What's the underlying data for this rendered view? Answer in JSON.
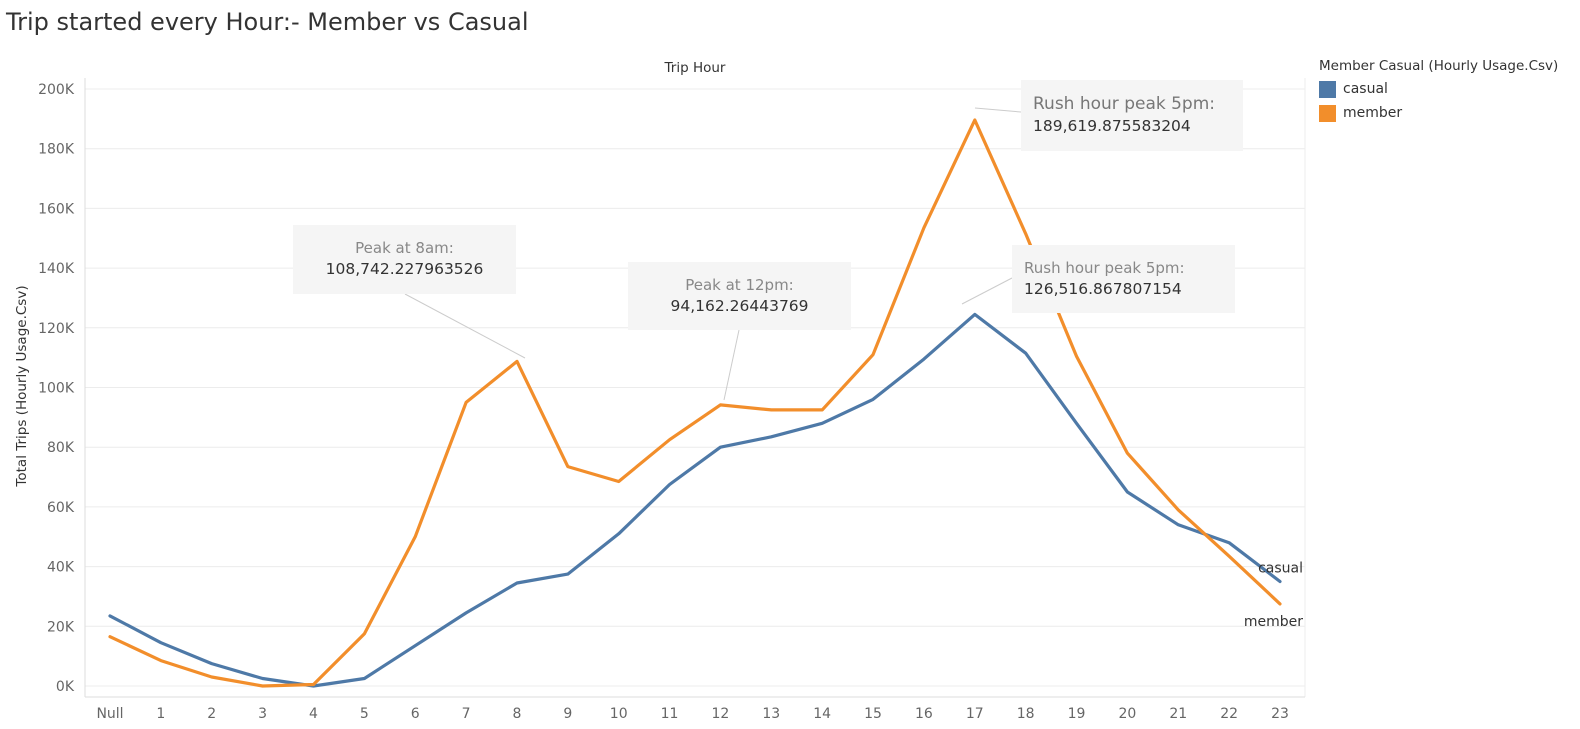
{
  "title": "Trip started every Hour:- Member vs Casual",
  "legend": {
    "title": "Member Casual (Hourly Usage.Csv)",
    "items": [
      {
        "label": "casual",
        "color": "#4e79a7"
      },
      {
        "label": "member",
        "color": "#f28e2b"
      }
    ]
  },
  "annotations": [
    {
      "label": "Peak at 8am:",
      "value": "108,742.227963526"
    },
    {
      "label": "Peak at 12pm:",
      "value": "94,162.26443769"
    },
    {
      "label": "Rush hour peak 5pm:",
      "value": "189,619.875583204"
    },
    {
      "label": "Rush hour peak 5pm:",
      "value": "126,516.867807154"
    }
  ],
  "chart_data": {
    "type": "line",
    "title": "Trip started every Hour:- Member vs Casual",
    "xlabel": "Trip Hour",
    "ylabel": "Total Trips (Hourly Usage.Csv)",
    "categories": [
      "Null",
      "1",
      "2",
      "3",
      "4",
      "5",
      "6",
      "7",
      "8",
      "9",
      "10",
      "11",
      "12",
      "13",
      "14",
      "15",
      "16",
      "17",
      "18",
      "19",
      "20",
      "21",
      "22",
      "23"
    ],
    "ylim": [
      0,
      200000
    ],
    "yticks": [
      0,
      20000,
      40000,
      60000,
      80000,
      100000,
      120000,
      140000,
      160000,
      180000,
      200000
    ],
    "ytick_labels": [
      "0K",
      "20K",
      "40K",
      "60K",
      "80K",
      "100K",
      "120K",
      "140K",
      "160K",
      "180K",
      "200K"
    ],
    "grid": true,
    "legend_position": "right",
    "series": [
      {
        "name": "casual",
        "color": "#4e79a7",
        "values": [
          23500,
          14500,
          7500,
          2500,
          0,
          2500,
          13500,
          24500,
          34500,
          37500,
          51000,
          67500,
          80000,
          83500,
          88000,
          96000,
          109500,
          124500,
          111500,
          88000,
          65000,
          54000,
          48000,
          35000
        ]
      },
      {
        "name": "member",
        "color": "#f28e2b",
        "values": [
          16500,
          8500,
          3000,
          0,
          500,
          17500,
          50000,
          95000,
          108742,
          73500,
          68500,
          82500,
          94162,
          92500,
          92500,
          111000,
          153500,
          189620,
          151500,
          110500,
          78000,
          59000,
          43500,
          27500
        ]
      }
    ]
  }
}
